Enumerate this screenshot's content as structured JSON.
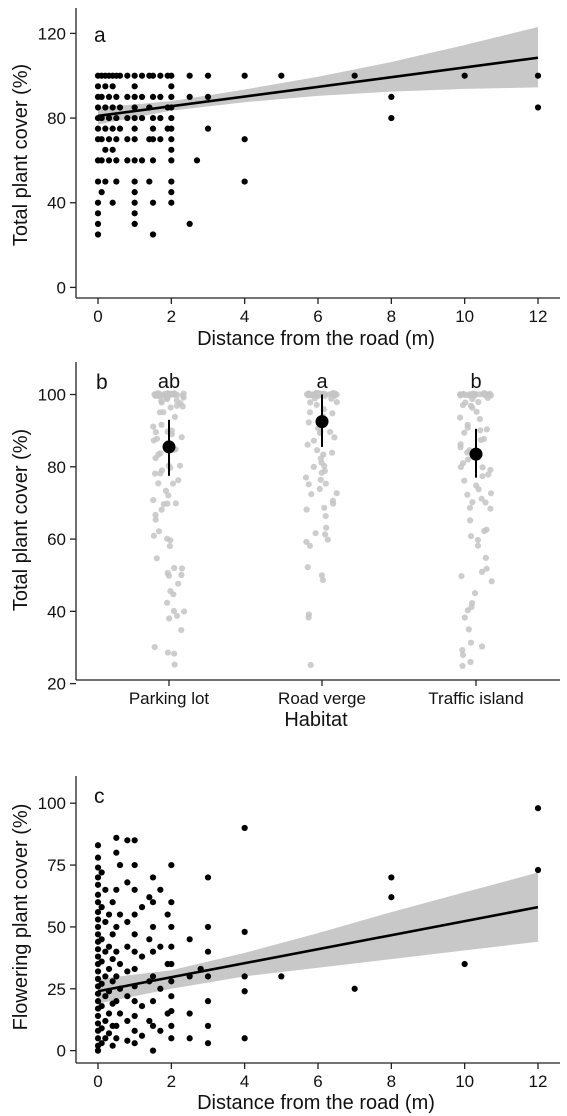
{
  "chart_data": [
    {
      "panel": "a",
      "type": "scatter",
      "xlabel": "Distance from the road (m)",
      "ylabel": "Total plant cover (%)",
      "xlim": [
        -0.6,
        12.6
      ],
      "ylim": [
        -5,
        132
      ],
      "xticks": [
        0,
        2,
        4,
        6,
        8,
        10,
        12
      ],
      "yticks": [
        0,
        40,
        80,
        120
      ],
      "grid": false,
      "points": [
        [
          0,
          100
        ],
        [
          0,
          95
        ],
        [
          0,
          90
        ],
        [
          0,
          85
        ],
        [
          0,
          80
        ],
        [
          0,
          75
        ],
        [
          0,
          70
        ],
        [
          0,
          60
        ],
        [
          0,
          50
        ],
        [
          0,
          40
        ],
        [
          0,
          35
        ],
        [
          0,
          30
        ],
        [
          0,
          25
        ],
        [
          0.1,
          100
        ],
        [
          0.1,
          90
        ],
        [
          0.1,
          80
        ],
        [
          0.1,
          70
        ],
        [
          0.1,
          60
        ],
        [
          0.1,
          45
        ],
        [
          0.2,
          100
        ],
        [
          0.2,
          95
        ],
        [
          0.2,
          85
        ],
        [
          0.2,
          75
        ],
        [
          0.2,
          65
        ],
        [
          0.2,
          50
        ],
        [
          0.3,
          100
        ],
        [
          0.3,
          90
        ],
        [
          0.3,
          80
        ],
        [
          0.3,
          70
        ],
        [
          0.3,
          60
        ],
        [
          0.4,
          100
        ],
        [
          0.4,
          95
        ],
        [
          0.4,
          85
        ],
        [
          0.4,
          75
        ],
        [
          0.4,
          65
        ],
        [
          0.4,
          40
        ],
        [
          0.5,
          100
        ],
        [
          0.5,
          90
        ],
        [
          0.5,
          80
        ],
        [
          0.5,
          70
        ],
        [
          0.5,
          60
        ],
        [
          0.5,
          50
        ],
        [
          0.6,
          100
        ],
        [
          0.6,
          85
        ],
        [
          0.6,
          75
        ],
        [
          0.8,
          100
        ],
        [
          0.8,
          90
        ],
        [
          0.8,
          80
        ],
        [
          0.8,
          70
        ],
        [
          0.8,
          60
        ],
        [
          1,
          100
        ],
        [
          1,
          95
        ],
        [
          1,
          90
        ],
        [
          1,
          85
        ],
        [
          1,
          80
        ],
        [
          1,
          75
        ],
        [
          1,
          70
        ],
        [
          1,
          60
        ],
        [
          1,
          50
        ],
        [
          1,
          45
        ],
        [
          1,
          40
        ],
        [
          1,
          35
        ],
        [
          1,
          30
        ],
        [
          1.2,
          100
        ],
        [
          1.2,
          90
        ],
        [
          1.2,
          80
        ],
        [
          1.2,
          60
        ],
        [
          1.4,
          100
        ],
        [
          1.4,
          85
        ],
        [
          1.4,
          70
        ],
        [
          1.4,
          50
        ],
        [
          1.5,
          100
        ],
        [
          1.5,
          90
        ],
        [
          1.5,
          80
        ],
        [
          1.5,
          75
        ],
        [
          1.5,
          70
        ],
        [
          1.5,
          60
        ],
        [
          1.5,
          40
        ],
        [
          1.5,
          25
        ],
        [
          1.7,
          100
        ],
        [
          1.7,
          90
        ],
        [
          1.7,
          80
        ],
        [
          1.7,
          70
        ],
        [
          1.9,
          100
        ],
        [
          1.9,
          85
        ],
        [
          1.9,
          75
        ],
        [
          2,
          100
        ],
        [
          2,
          95
        ],
        [
          2,
          90
        ],
        [
          2,
          85
        ],
        [
          2,
          80
        ],
        [
          2,
          75
        ],
        [
          2,
          70
        ],
        [
          2,
          65
        ],
        [
          2,
          60
        ],
        [
          2,
          50
        ],
        [
          2,
          45
        ],
        [
          2,
          40
        ],
        [
          2.5,
          100
        ],
        [
          2.5,
          90
        ],
        [
          2.5,
          30
        ],
        [
          2.7,
          60
        ],
        [
          3,
          100
        ],
        [
          3,
          90
        ],
        [
          3,
          75
        ],
        [
          4,
          100
        ],
        [
          4,
          70
        ],
        [
          4,
          50
        ],
        [
          5,
          100
        ],
        [
          7,
          100
        ],
        [
          8,
          90
        ],
        [
          8,
          80
        ],
        [
          10,
          100
        ],
        [
          12,
          100
        ],
        [
          12,
          85
        ]
      ],
      "fit": {
        "x": [
          0,
          12
        ],
        "y": [
          81,
          108.5
        ]
      },
      "ci": {
        "x": [
          0,
          2,
          4,
          6,
          8,
          10,
          12
        ],
        "lower": [
          77,
          83.5,
          87.5,
          90.5,
          92.5,
          93.8,
          94.5
        ],
        "upper": [
          85,
          88,
          93.5,
          99.5,
          106.5,
          114.5,
          123
        ]
      }
    },
    {
      "panel": "b",
      "type": "scatter",
      "xlabel": "Habitat",
      "ylabel": "Total plant cover (%)",
      "categories": [
        "Parking lot",
        "Road verge",
        "Traffic island"
      ],
      "ylim": [
        21,
        109
      ],
      "yticks": [
        20,
        40,
        60,
        80,
        100
      ],
      "grid": false,
      "means": [
        85.5,
        92.5,
        83.5
      ],
      "error_bars": [
        [
          77.5,
          93
        ],
        [
          85.5,
          100
        ],
        [
          77,
          90.5
        ]
      ],
      "letters": [
        "ab",
        "a",
        "b"
      ],
      "points": [
        [
          100,
          100,
          100,
          100,
          100,
          100,
          100,
          100,
          100,
          100,
          100,
          100,
          100,
          100,
          100,
          100,
          100,
          100,
          100,
          100,
          100,
          100,
          100,
          100,
          100,
          100,
          100,
          100,
          100,
          100,
          99,
          99,
          99,
          99,
          98,
          98,
          98,
          98,
          97,
          97,
          96,
          95,
          95,
          94,
          92,
          91,
          90,
          90,
          90,
          89,
          88,
          88,
          87,
          85,
          85,
          84,
          83,
          82,
          80,
          80,
          80,
          79,
          78,
          78,
          76,
          75,
          75,
          73,
          72,
          71,
          70,
          70,
          70,
          68,
          67,
          65,
          62,
          61,
          60,
          60,
          58,
          55,
          52,
          52,
          51,
          50,
          50,
          48,
          46,
          45,
          42,
          40,
          40,
          39,
          38,
          35,
          30,
          29,
          28,
          25
        ],
        [
          100,
          100,
          100,
          100,
          100,
          100,
          100,
          100,
          100,
          100,
          100,
          100,
          100,
          100,
          100,
          100,
          100,
          100,
          100,
          100,
          100,
          100,
          100,
          100,
          100,
          100,
          100,
          100,
          100,
          100,
          100,
          100,
          100,
          100,
          100,
          99,
          99,
          98,
          98,
          97,
          96,
          95,
          95,
          94,
          93,
          92,
          91,
          90,
          90,
          89,
          88,
          87,
          86,
          85,
          84,
          83,
          82,
          81,
          80,
          80,
          79,
          78,
          77,
          76,
          75,
          75,
          74,
          73,
          72,
          71,
          70,
          69,
          68,
          66,
          63,
          62,
          61,
          60,
          59,
          58,
          52,
          50,
          49,
          39,
          38,
          25
        ],
        [
          100,
          100,
          100,
          100,
          100,
          100,
          100,
          100,
          100,
          100,
          100,
          100,
          100,
          100,
          100,
          100,
          100,
          100,
          100,
          100,
          100,
          100,
          100,
          100,
          100,
          100,
          100,
          100,
          99,
          99,
          98,
          98,
          97,
          97,
          96,
          95,
          94,
          93,
          92,
          91,
          90,
          90,
          89,
          88,
          87,
          86,
          85,
          85,
          84,
          83,
          82,
          81,
          80,
          80,
          79,
          78,
          77,
          76,
          75,
          74,
          73,
          72,
          71,
          70,
          70,
          69,
          68,
          65,
          63,
          62,
          61,
          60,
          58,
          55,
          52,
          51,
          50,
          48,
          45,
          42,
          41,
          40,
          38,
          35,
          31,
          30,
          29,
          28,
          26,
          25
        ]
      ]
    },
    {
      "panel": "c",
      "type": "scatter",
      "xlabel": "Distance from the road (m)",
      "ylabel": "Flowering plant cover (%)",
      "xlim": [
        -0.6,
        12.6
      ],
      "ylim": [
        -5,
        111
      ],
      "xticks": [
        0,
        2,
        4,
        6,
        8,
        10,
        12
      ],
      "yticks": [
        0,
        25,
        50,
        75,
        100
      ],
      "grid": false,
      "points": [
        [
          0,
          83
        ],
        [
          0,
          78
        ],
        [
          0,
          74
        ],
        [
          0,
          70
        ],
        [
          0,
          67
        ],
        [
          0,
          63
        ],
        [
          0,
          60
        ],
        [
          0,
          56
        ],
        [
          0,
          53
        ],
        [
          0,
          50
        ],
        [
          0,
          47
        ],
        [
          0,
          44
        ],
        [
          0,
          41
        ],
        [
          0,
          38
        ],
        [
          0,
          35
        ],
        [
          0,
          32
        ],
        [
          0,
          29
        ],
        [
          0,
          26
        ],
        [
          0,
          23
        ],
        [
          0,
          20
        ],
        [
          0,
          17
        ],
        [
          0,
          14
        ],
        [
          0,
          11
        ],
        [
          0,
          8
        ],
        [
          0,
          5
        ],
        [
          0,
          2
        ],
        [
          0,
          0
        ],
        [
          0.1,
          72
        ],
        [
          0.1,
          58
        ],
        [
          0.1,
          45
        ],
        [
          0.1,
          36
        ],
        [
          0.1,
          27
        ],
        [
          0.1,
          18
        ],
        [
          0.1,
          9
        ],
        [
          0.1,
          3
        ],
        [
          0.2,
          65
        ],
        [
          0.2,
          52
        ],
        [
          0.2,
          40
        ],
        [
          0.2,
          30
        ],
        [
          0.2,
          22
        ],
        [
          0.2,
          12
        ],
        [
          0.2,
          5
        ],
        [
          0.3,
          55
        ],
        [
          0.3,
          42
        ],
        [
          0.3,
          33
        ],
        [
          0.3,
          24
        ],
        [
          0.3,
          15
        ],
        [
          0.3,
          7
        ],
        [
          0.4,
          60
        ],
        [
          0.4,
          47
        ],
        [
          0.4,
          37
        ],
        [
          0.4,
          28
        ],
        [
          0.4,
          19
        ],
        [
          0.4,
          10
        ],
        [
          0.4,
          2
        ],
        [
          0.5,
          86
        ],
        [
          0.5,
          80
        ],
        [
          0.5,
          65
        ],
        [
          0.5,
          50
        ],
        [
          0.5,
          40
        ],
        [
          0.5,
          30
        ],
        [
          0.5,
          20
        ],
        [
          0.5,
          10
        ],
        [
          0.5,
          5
        ],
        [
          0.6,
          75
        ],
        [
          0.6,
          55
        ],
        [
          0.6,
          35
        ],
        [
          0.6,
          25
        ],
        [
          0.6,
          15
        ],
        [
          0.8,
          85
        ],
        [
          0.8,
          68
        ],
        [
          0.8,
          52
        ],
        [
          0.8,
          42
        ],
        [
          0.8,
          32
        ],
        [
          0.8,
          22
        ],
        [
          0.8,
          12
        ],
        [
          0.8,
          4
        ],
        [
          1,
          85
        ],
        [
          1,
          75
        ],
        [
          1,
          65
        ],
        [
          1,
          55
        ],
        [
          1,
          47
        ],
        [
          1,
          40
        ],
        [
          1,
          33
        ],
        [
          1,
          26
        ],
        [
          1,
          20
        ],
        [
          1,
          14
        ],
        [
          1,
          8
        ],
        [
          1,
          3
        ],
        [
          1.2,
          58
        ],
        [
          1.2,
          38
        ],
        [
          1.2,
          18
        ],
        [
          1.2,
          6
        ],
        [
          1.4,
          62
        ],
        [
          1.4,
          45
        ],
        [
          1.4,
          28
        ],
        [
          1.4,
          12
        ],
        [
          1.5,
          70
        ],
        [
          1.5,
          60
        ],
        [
          1.5,
          50
        ],
        [
          1.5,
          40
        ],
        [
          1.5,
          30
        ],
        [
          1.5,
          20
        ],
        [
          1.5,
          10
        ],
        [
          1.5,
          0
        ],
        [
          1.7,
          65
        ],
        [
          1.7,
          42
        ],
        [
          1.7,
          25
        ],
        [
          1.7,
          8
        ],
        [
          1.9,
          55
        ],
        [
          1.9,
          35
        ],
        [
          1.9,
          15
        ],
        [
          2,
          75
        ],
        [
          2,
          60
        ],
        [
          2,
          50
        ],
        [
          2,
          42
        ],
        [
          2,
          35
        ],
        [
          2,
          28
        ],
        [
          2,
          22
        ],
        [
          2,
          16
        ],
        [
          2,
          10
        ],
        [
          2,
          5
        ],
        [
          2.5,
          45
        ],
        [
          2.5,
          30
        ],
        [
          2.5,
          15
        ],
        [
          2.5,
          5
        ],
        [
          2.8,
          33
        ],
        [
          3,
          70
        ],
        [
          3,
          50
        ],
        [
          3,
          40
        ],
        [
          3,
          30
        ],
        [
          3,
          20
        ],
        [
          3,
          10
        ],
        [
          3,
          3
        ],
        [
          4,
          90
        ],
        [
          4,
          48
        ],
        [
          4,
          30
        ],
        [
          4,
          24
        ],
        [
          4,
          5
        ],
        [
          5,
          30
        ],
        [
          7,
          25
        ],
        [
          8,
          70
        ],
        [
          8,
          62
        ],
        [
          10,
          35
        ],
        [
          12,
          98
        ],
        [
          12,
          73
        ]
      ],
      "fit": {
        "x": [
          0,
          12
        ],
        "y": [
          24,
          58
        ]
      },
      "ci": {
        "x": [
          0,
          2,
          4,
          6,
          8,
          10,
          12
        ],
        "lower": [
          19,
          25,
          30,
          33.5,
          37,
          40.5,
          44
        ],
        "upper": [
          29,
          32.5,
          39.5,
          47.5,
          56,
          64,
          72
        ]
      }
    }
  ]
}
